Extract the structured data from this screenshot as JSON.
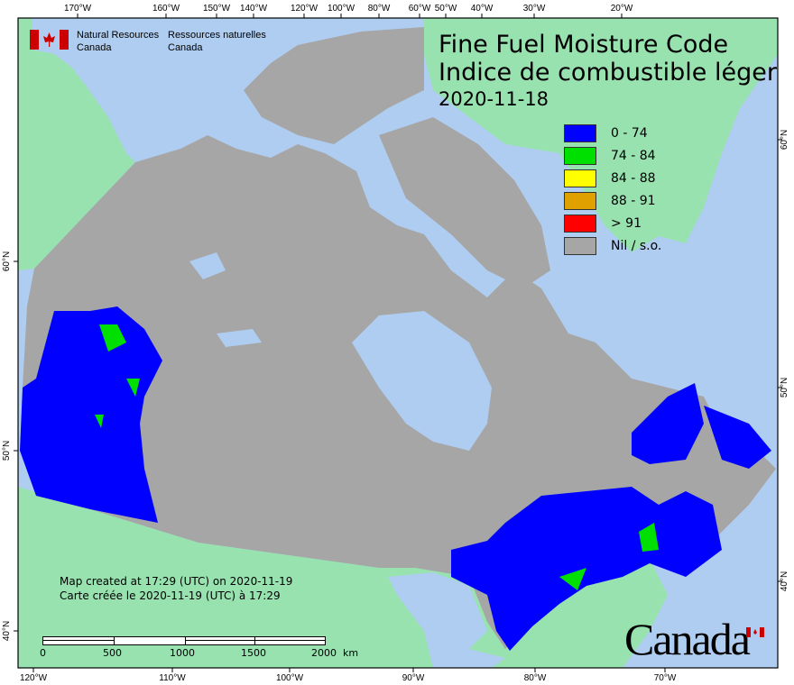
{
  "header": {
    "agency_en": [
      "Natural Resources",
      "Canada"
    ],
    "agency_fr": [
      "Ressources naturelles",
      "Canada"
    ],
    "title_en": "Fine Fuel Moisture Code",
    "title_fr": "Indice de combustible léger",
    "date": "2020-11-18"
  },
  "legend": [
    {
      "label": "0 - 74",
      "color": "#0000ff"
    },
    {
      "label": "74 - 84",
      "color": "#00e000"
    },
    {
      "label": "84 - 88",
      "color": "#ffff00"
    },
    {
      "label": "88 - 91",
      "color": "#e0a000"
    },
    {
      "label": "> 91",
      "color": "#ff0000"
    },
    {
      "label": "Nil / s.o.",
      "color": "#a6a6a6"
    }
  ],
  "credit": {
    "line_en": "Map created at 17:29 (UTC) on 2020-11-19",
    "line_fr": "Carte créée le 2020-11-19 (UTC) à 17:29"
  },
  "scale_bar": {
    "labels": [
      "0",
      "500",
      "1000",
      "1500",
      "2000  km"
    ]
  },
  "axes": {
    "top": [
      "170°W",
      "160°W",
      "150°W",
      "140°W",
      "120°W",
      "100°W",
      "80°W",
      "60°W",
      "50°W",
      "40°W",
      "30°W",
      "20°W"
    ],
    "bottom": [
      "120°W",
      "110°W",
      "100°W",
      "90°W",
      "80°W",
      "70°W"
    ],
    "left": [
      "60°N",
      "50°N",
      "40°N"
    ],
    "right": [
      "60°N",
      "50°N",
      "40°N"
    ]
  },
  "wordmark": "Canada",
  "colors": {
    "ocean": "#afcdf0",
    "foreign_land": "#98e2b0",
    "no_data": "#a6a6a6"
  }
}
